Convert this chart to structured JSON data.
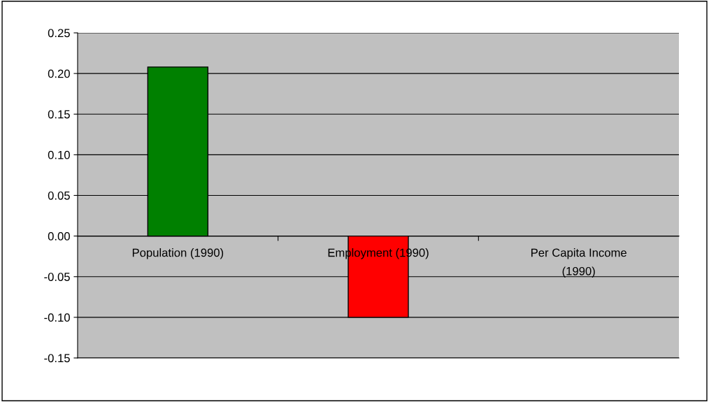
{
  "chart_data": {
    "type": "bar",
    "categories": [
      "Population (1990)",
      "Employment (1990)",
      "Per Capita Income (1990)"
    ],
    "values": [
      0.208,
      -0.1,
      null
    ],
    "colors": [
      "#008000",
      "#ff0000",
      null
    ],
    "ylim": [
      -0.15,
      0.25
    ],
    "yticks": [
      {
        "value": -0.15,
        "label": "-0.15"
      },
      {
        "value": -0.1,
        "label": "-0.10"
      },
      {
        "value": -0.05,
        "label": "-0.05"
      },
      {
        "value": 0,
        "label": "0.00"
      },
      {
        "value": 0.05,
        "label": "0.05"
      },
      {
        "value": 0.1,
        "label": "0.10"
      },
      {
        "value": 0.15,
        "label": "0.15"
      },
      {
        "value": 0.2,
        "label": "0.20"
      },
      {
        "value": 0.25,
        "label": "0.25"
      }
    ],
    "grid": "y",
    "legend": false
  }
}
